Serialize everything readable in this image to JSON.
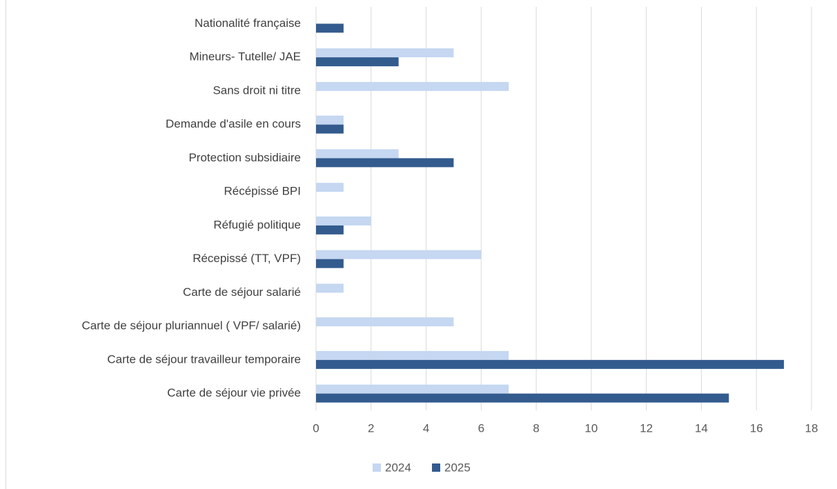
{
  "chart_data": {
    "type": "bar",
    "orientation": "horizontal",
    "categories": [
      "Nationalité française",
      "Mineurs- Tutelle/ JAE",
      "Sans droit ni titre",
      "Demande d'asile en cours",
      "Protection subsidiaire",
      "Récépissé BPI",
      "Réfugié politique",
      "Récepissé (TT, VPF)",
      "Carte de séjour salarié",
      "Carte de séjour pluriannuel ( VPF/ salarié)",
      "Carte de séjour travailleur temporaire",
      "Carte de séjour vie privée"
    ],
    "series": [
      {
        "name": "2024",
        "color": "#c5d7f1",
        "values": [
          0,
          5,
          7,
          1,
          3,
          1,
          2,
          6,
          1,
          5,
          7,
          7
        ]
      },
      {
        "name": "2025",
        "color": "#335b8e",
        "values": [
          1,
          3,
          0,
          1,
          5,
          0,
          1,
          1,
          0,
          0,
          17,
          15
        ]
      }
    ],
    "xlim": [
      0,
      18
    ],
    "xticks": [
      0,
      2,
      4,
      6,
      8,
      10,
      12,
      14,
      16,
      18
    ],
    "grid": true,
    "legend": "bottom"
  }
}
